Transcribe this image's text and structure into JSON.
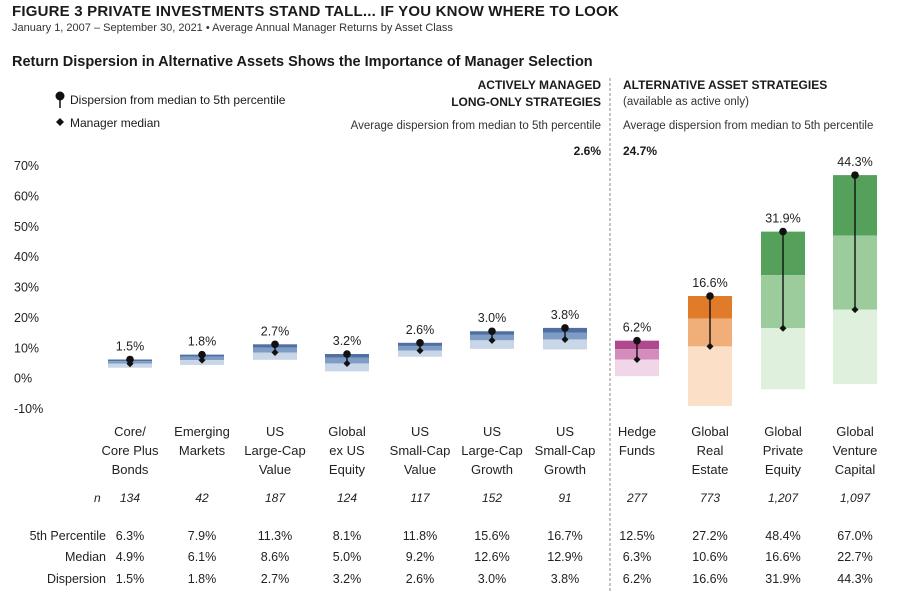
{
  "figure_title": "FIGURE 3  PRIVATE INVESTMENTS STAND TALL... IF YOU KNOW WHERE TO LOOK",
  "figure_subtitle": "January 1, 2007 – September 30, 2021 • Average Annual Manager Returns by Asset Class",
  "legend": {
    "dispersion_label": "Dispersion  from median to 5th percentile",
    "median_label": "Manager median"
  },
  "sections": {
    "active": {
      "title_line1": "ACTIVELY MANAGED",
      "title_line2": "LONG-ONLY STRATEGIES",
      "avg_label": "Average dispersion from median to 5th percentile",
      "avg_value": "2.6%"
    },
    "alternative": {
      "title_line1": "ALTERNATIVE ASSET STRATEGIES",
      "title_line2": "(available as active only)",
      "avg_label": "Average dispersion from median to 5th percentile",
      "avg_value": "24.7%"
    }
  },
  "table": {
    "n_label": "n",
    "pct5_label": "5th Percentile",
    "median_label": "Median",
    "dispersion_label": "Dispersion"
  },
  "colors": {
    "blue_dark": "#4f6fa3",
    "blue_light": "#c8d6e8",
    "magenta": "#b0488f",
    "orange": "#e07b2a",
    "green": "#55a05a",
    "divider": "#888888"
  },
  "chart_data": {
    "type": "bar",
    "title": "Return Dispersion in Alternative Assets Shows the Importance of Manager Selection",
    "y_ticks": [
      "70%",
      "60%",
      "50%",
      "40%",
      "30%",
      "20%",
      "10%",
      "0%",
      "-10%"
    ],
    "ylim": [
      -10,
      70
    ],
    "categories": [
      {
        "lines": [
          "Core/",
          "Core Plus",
          "Bonds"
        ],
        "n": "134",
        "pct5": 6.3,
        "median": 4.9,
        "dispersion": 1.5,
        "pct5_text": "6.3%",
        "median_text": "4.9%",
        "dispersion_text": "1.5%",
        "low": 3.6,
        "color": "blue"
      },
      {
        "lines": [
          "Emerging",
          "Markets"
        ],
        "n": "42",
        "pct5": 7.9,
        "median": 6.1,
        "dispersion": 1.8,
        "pct5_text": "7.9%",
        "median_text": "6.1%",
        "dispersion_text": "1.8%",
        "low": 4.5,
        "color": "blue"
      },
      {
        "lines": [
          "US",
          "Large-Cap",
          "Value"
        ],
        "n": "187",
        "pct5": 11.3,
        "median": 8.6,
        "dispersion": 2.7,
        "pct5_text": "11.3%",
        "median_text": "8.6%",
        "dispersion_text": "2.7%",
        "low": 6.2,
        "color": "blue"
      },
      {
        "lines": [
          "Global",
          "ex US",
          "Equity"
        ],
        "n": "124",
        "pct5": 8.1,
        "median": 5.0,
        "dispersion": 3.2,
        "pct5_text": "8.1%",
        "median_text": "5.0%",
        "dispersion_text": "3.2%",
        "low": 2.4,
        "color": "blue"
      },
      {
        "lines": [
          "US",
          "Small-Cap",
          "Value"
        ],
        "n": "117",
        "pct5": 11.8,
        "median": 9.2,
        "dispersion": 2.6,
        "pct5_text": "11.8%",
        "median_text": "9.2%",
        "dispersion_text": "2.6%",
        "low": 7.2,
        "color": "blue"
      },
      {
        "lines": [
          "US",
          "Large-Cap",
          "Growth"
        ],
        "n": "152",
        "pct5": 15.6,
        "median": 12.6,
        "dispersion": 3.0,
        "pct5_text": "15.6%",
        "median_text": "12.6%",
        "dispersion_text": "3.0%",
        "low": 9.8,
        "color": "blue"
      },
      {
        "lines": [
          "US",
          "Small-Cap",
          "Growth"
        ],
        "n": "91",
        "pct5": 16.7,
        "median": 12.9,
        "dispersion": 3.8,
        "pct5_text": "16.7%",
        "median_text": "12.9%",
        "dispersion_text": "3.8%",
        "low": 9.6,
        "color": "blue"
      },
      {
        "lines": [
          "Hedge",
          "Funds"
        ],
        "n": "277",
        "pct5": 12.5,
        "median": 6.3,
        "dispersion": 6.2,
        "pct5_text": "12.5%",
        "median_text": "6.3%",
        "dispersion_text": "6.2%",
        "low": 0.8,
        "color": "magenta"
      },
      {
        "lines": [
          "Global",
          "Real",
          "Estate"
        ],
        "n": "773",
        "pct5": 27.2,
        "median": 10.6,
        "dispersion": 16.6,
        "pct5_text": "27.2%",
        "median_text": "10.6%",
        "dispersion_text": "16.6%",
        "low": -9.0,
        "color": "orange"
      },
      {
        "lines": [
          "Global",
          "Private",
          "Equity"
        ],
        "n": "1,207",
        "pct5": 48.4,
        "median": 16.6,
        "dispersion": 31.9,
        "pct5_text": "48.4%",
        "median_text": "16.6%",
        "dispersion_text": "31.9%",
        "low": -3.5,
        "color": "green"
      },
      {
        "lines": [
          "Global",
          "Venture",
          "Capital"
        ],
        "n": "1,097",
        "pct5": 67.0,
        "median": 22.7,
        "dispersion": 44.3,
        "pct5_text": "67.0%",
        "median_text": "22.7%",
        "dispersion_text": "44.3%",
        "low": -1.8,
        "color": "green"
      }
    ]
  }
}
